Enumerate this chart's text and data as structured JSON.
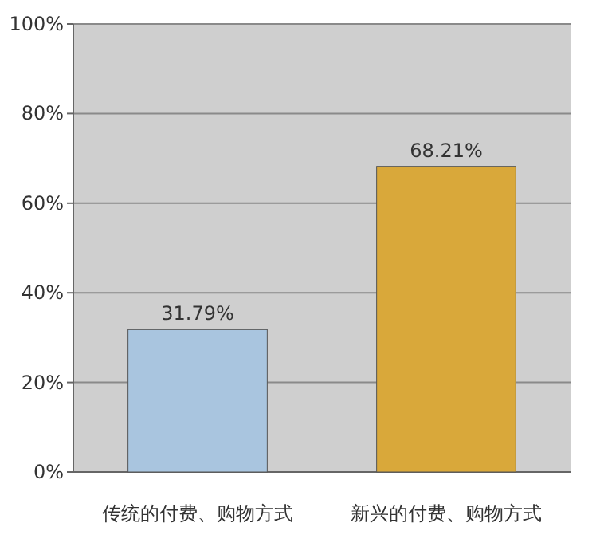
{
  "chart_data": {
    "type": "bar",
    "categories": [
      "传统的付费、购物方式",
      "新兴的付费、购物方式"
    ],
    "values": [
      31.79,
      68.21
    ],
    "colors": [
      "#a9c5df",
      "#d9a83a"
    ],
    "value_labels": [
      "31.79%",
      "68.21%"
    ],
    "ylim": [
      0,
      100
    ],
    "yticks": [
      {
        "value": 0,
        "label": "0%"
      },
      {
        "value": 20,
        "label": "20%"
      },
      {
        "value": 40,
        "label": "40%"
      },
      {
        "value": 60,
        "label": "60%"
      },
      {
        "value": 80,
        "label": "80%"
      },
      {
        "value": 100,
        "label": "100%"
      }
    ],
    "grid": "y"
  }
}
